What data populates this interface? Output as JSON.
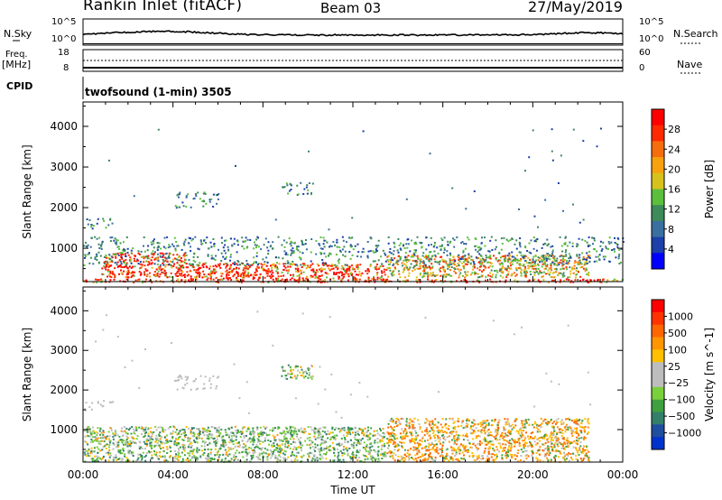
{
  "header": {
    "station": "Rankin Inlet (fitACF)",
    "beam": "Beam 03",
    "date": "27/May/2019"
  },
  "strip_labels": {
    "nsky": "N.Sky",
    "nsearch": "N.Search",
    "freq_top": "Freq.",
    "freq_unit": "[MHz]",
    "cpid": "CPID",
    "nave": "Nave",
    "cpid_value": "twofsound (1-min) 3505"
  },
  "noise_ticks": {
    "left": [
      "10^5",
      "10^0"
    ],
    "right": [
      "10^5",
      "10^0"
    ]
  },
  "freq_ticks": {
    "left": [
      "18",
      "8"
    ],
    "right": [
      "60",
      "0"
    ]
  },
  "time_axis": {
    "ticks": [
      "00:00",
      "04:00",
      "08:00",
      "12:00",
      "16:00",
      "20:00",
      "00:00"
    ],
    "label": "Time UT"
  },
  "chart_data": [
    {
      "type": "heatmap",
      "title": "Power",
      "xlabel": "Time UT",
      "ylabel": "Slant Range [km]",
      "xlim": [
        0,
        24
      ],
      "ylim": [
        180,
        4600
      ],
      "yticks": [
        "4000",
        "3000",
        "2000",
        "1000"
      ],
      "colorbar": {
        "label": "Power [dB]",
        "ticks": [
          "28",
          "24",
          "20",
          "16",
          "12",
          "8",
          "4"
        ],
        "range": [
          0,
          32
        ],
        "colors": [
          "#0000ff",
          "#1c3faa",
          "#3a6fa0",
          "#3d8a5a",
          "#5bbf3c",
          "#d7c21d",
          "#f7a10e",
          "#f66d0e",
          "#ff2a00",
          "#ff0000"
        ]
      },
      "regions": [
        {
          "t": [
            0.0,
            24.0
          ],
          "r": [
            180,
            260
          ],
          "level": "high"
        },
        {
          "t": [
            0.8,
            4.5
          ],
          "r": [
            300,
            900
          ],
          "level": "high"
        },
        {
          "t": [
            4.5,
            13.5
          ],
          "r": [
            250,
            650
          ],
          "level": "high"
        },
        {
          "t": [
            13.5,
            22.5
          ],
          "r": [
            300,
            850
          ],
          "level": "mid"
        },
        {
          "t": [
            0.0,
            24.0
          ],
          "r": [
            600,
            1300
          ],
          "level": "low"
        },
        {
          "t": [
            0.0,
            1.3
          ],
          "r": [
            1500,
            1750
          ],
          "level": "low"
        },
        {
          "t": [
            4.0,
            6.0
          ],
          "r": [
            2000,
            2400
          ],
          "level": "low"
        },
        {
          "t": [
            8.8,
            10.2
          ],
          "r": [
            2300,
            2650
          ],
          "level": "low"
        }
      ]
    },
    {
      "type": "heatmap",
      "title": "Velocity",
      "xlabel": "Time UT",
      "ylabel": "Slant Range [km]",
      "xlim": [
        0,
        24
      ],
      "ylim": [
        180,
        4600
      ],
      "yticks": [
        "4000",
        "3000",
        "2000",
        "1000"
      ],
      "colorbar": {
        "label": "Velocity [m s^-1]",
        "ticks": [
          "1000",
          "500",
          "100",
          "25",
          "−25",
          "−100",
          "−500",
          "−1000"
        ],
        "range": [
          -1200,
          1200
        ],
        "colors": [
          "#0033cc",
          "#1f4da0",
          "#347f6a",
          "#3fa040",
          "#7ad03a",
          "#bdbdbd",
          "#bdbdbd",
          "#ffc000",
          "#ff9500",
          "#ff6600",
          "#ff3300",
          "#ff0000"
        ]
      },
      "regions": [
        {
          "t": [
            0.0,
            13.5
          ],
          "r": [
            200,
            1100
          ],
          "level": "positive"
        },
        {
          "t": [
            13.5,
            22.5
          ],
          "r": [
            200,
            1300
          ],
          "level": "negative"
        },
        {
          "t": [
            0.0,
            1.3
          ],
          "r": [
            1500,
            1750
          ],
          "level": "near-zero"
        },
        {
          "t": [
            4.0,
            6.0
          ],
          "r": [
            2000,
            2400
          ],
          "level": "near-zero"
        },
        {
          "t": [
            8.8,
            10.2
          ],
          "r": [
            2300,
            2650
          ],
          "level": "positive"
        }
      ]
    }
  ]
}
